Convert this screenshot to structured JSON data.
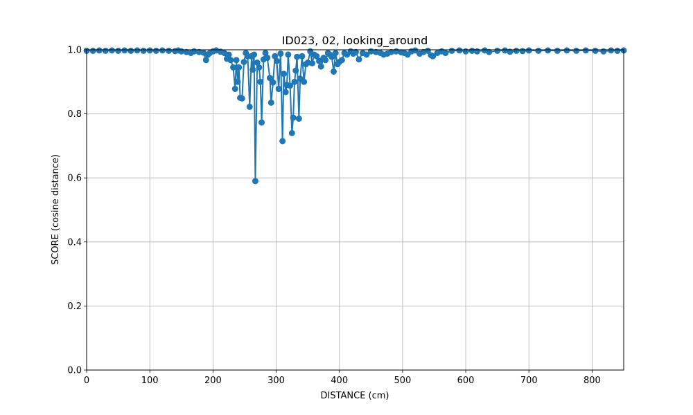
{
  "chart_data": {
    "type": "line",
    "title": "ID023, 02, looking_around",
    "xlabel": "DISTANCE (cm)",
    "ylabel": "SCORE (cosine distance)",
    "xlim": [
      0,
      850
    ],
    "ylim": [
      0,
      1.0
    ],
    "grid": true,
    "colors": {
      "series": "#1f77b4"
    },
    "xticks": [
      0,
      100,
      200,
      300,
      400,
      500,
      600,
      700,
      800
    ],
    "xtick_labels": [
      "0",
      "100",
      "200",
      "300",
      "400",
      "500",
      "600",
      "700",
      "800"
    ],
    "yticks": [
      0.0,
      0.2,
      0.4,
      0.6,
      0.8,
      1.0
    ],
    "ytick_labels": [
      "0.0",
      "0.2",
      "0.4",
      "0.6",
      "0.8",
      "1.0"
    ],
    "series": [
      {
        "marker": "circle",
        "points": [
          [
            0,
            0.997
          ],
          [
            10,
            0.997
          ],
          [
            20,
            0.998
          ],
          [
            30,
            0.997
          ],
          [
            40,
            0.998
          ],
          [
            50,
            0.997
          ],
          [
            60,
            0.998
          ],
          [
            70,
            0.997
          ],
          [
            80,
            0.998
          ],
          [
            90,
            0.997
          ],
          [
            100,
            0.998
          ],
          [
            110,
            0.997
          ],
          [
            120,
            0.998
          ],
          [
            130,
            0.997
          ],
          [
            140,
            0.996
          ],
          [
            145,
            0.998
          ],
          [
            150,
            0.995
          ],
          [
            158,
            0.993
          ],
          [
            165,
            0.99
          ],
          [
            170,
            0.995
          ],
          [
            178,
            0.993
          ],
          [
            185,
            0.991
          ],
          [
            189,
            0.968
          ],
          [
            192,
            0.985
          ],
          [
            195,
            0.99
          ],
          [
            200,
            0.995
          ],
          [
            205,
            0.998
          ],
          [
            212,
            0.994
          ],
          [
            218,
            0.99
          ],
          [
            222,
            0.972
          ],
          [
            225,
            0.985
          ],
          [
            228,
            0.968
          ],
          [
            232,
            0.945
          ],
          [
            235,
            0.878
          ],
          [
            237,
            0.968
          ],
          [
            239,
            0.9
          ],
          [
            241,
            0.945
          ],
          [
            243,
            0.85
          ],
          [
            246,
            0.848
          ],
          [
            249,
            0.962
          ],
          [
            252,
            0.99
          ],
          [
            255,
            0.98
          ],
          [
            258,
            0.822
          ],
          [
            261,
            0.98
          ],
          [
            263,
            0.938
          ],
          [
            265,
            0.985
          ],
          [
            267,
            0.59
          ],
          [
            270,
            0.96
          ],
          [
            273,
            0.945
          ],
          [
            275,
            0.9
          ],
          [
            277,
            0.773
          ],
          [
            280,
            0.97
          ],
          [
            283,
            0.99
          ],
          [
            286,
            0.975
          ],
          [
            290,
            0.912
          ],
          [
            292,
            0.835
          ],
          [
            295,
            0.898
          ],
          [
            298,
            0.98
          ],
          [
            301,
            0.965
          ],
          [
            304,
            0.878
          ],
          [
            307,
            0.988
          ],
          [
            310,
            0.715
          ],
          [
            312,
            0.925
          ],
          [
            315,
            0.868
          ],
          [
            317,
            0.89
          ],
          [
            319,
            0.985
          ],
          [
            322,
            0.888
          ],
          [
            325,
            0.74
          ],
          [
            327,
            0.788
          ],
          [
            329,
            0.9
          ],
          [
            331,
            0.935
          ],
          [
            333,
            0.978
          ],
          [
            336,
            0.785
          ],
          [
            338,
            0.91
          ],
          [
            341,
            0.98
          ],
          [
            344,
            0.9
          ],
          [
            347,
            0.955
          ],
          [
            350,
            0.96
          ],
          [
            354,
            0.995
          ],
          [
            357,
            0.958
          ],
          [
            360,
            0.985
          ],
          [
            364,
            0.98
          ],
          [
            368,
            0.965
          ],
          [
            371,
            0.948
          ],
          [
            375,
            0.975
          ],
          [
            378,
            0.968
          ],
          [
            382,
            0.99
          ],
          [
            385,
            0.985
          ],
          [
            388,
            0.978
          ],
          [
            391,
            0.932
          ],
          [
            394,
            0.99
          ],
          [
            397,
            0.955
          ],
          [
            400,
            0.962
          ],
          [
            404,
            0.968
          ],
          [
            408,
            0.99
          ],
          [
            412,
            0.985
          ],
          [
            418,
            0.995
          ],
          [
            422,
            0.988
          ],
          [
            426,
            0.993
          ],
          [
            431,
            0.97
          ],
          [
            437,
            0.99
          ],
          [
            443,
            0.985
          ],
          [
            450,
            0.995
          ],
          [
            458,
            0.993
          ],
          [
            465,
            0.99
          ],
          [
            470,
            0.985
          ],
          [
            476,
            0.988
          ],
          [
            482,
            0.993
          ],
          [
            490,
            0.995
          ],
          [
            498,
            0.992
          ],
          [
            503,
            0.99
          ],
          [
            508,
            0.985
          ],
          [
            514,
            0.995
          ],
          [
            520,
            0.998
          ],
          [
            527,
            0.988
          ],
          [
            533,
            0.993
          ],
          [
            540,
            0.997
          ],
          [
            545,
            0.983
          ],
          [
            548,
            0.98
          ],
          [
            555,
            0.99
          ],
          [
            562,
            0.995
          ],
          [
            568,
            0.99
          ],
          [
            578,
            0.997
          ],
          [
            590,
            0.998
          ],
          [
            600,
            0.995
          ],
          [
            610,
            0.997
          ],
          [
            618,
            0.995
          ],
          [
            630,
            0.998
          ],
          [
            637,
            0.993
          ],
          [
            650,
            0.997
          ],
          [
            662,
            0.998
          ],
          [
            670,
            0.994
          ],
          [
            680,
            0.997
          ],
          [
            690,
            0.996
          ],
          [
            700,
            0.998
          ],
          [
            715,
            0.997
          ],
          [
            730,
            0.998
          ],
          [
            745,
            0.997
          ],
          [
            760,
            0.998
          ],
          [
            775,
            0.997
          ],
          [
            790,
            0.998
          ],
          [
            805,
            0.997
          ],
          [
            818,
            0.995
          ],
          [
            830,
            0.998
          ],
          [
            840,
            0.997
          ],
          [
            850,
            0.998
          ]
        ]
      }
    ]
  }
}
